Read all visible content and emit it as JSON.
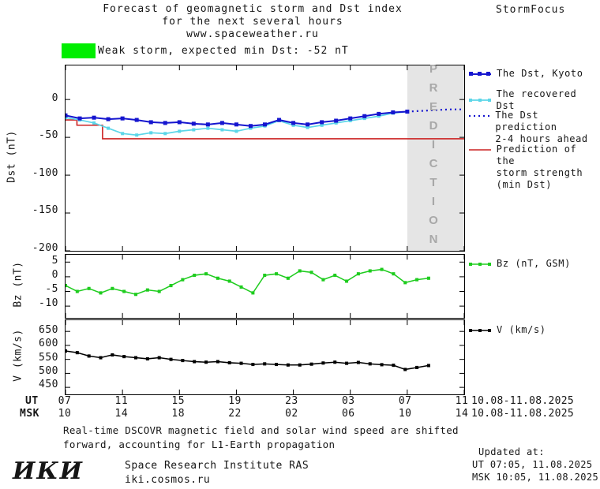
{
  "header": {
    "title_line1": "Forecast of geomagnetic storm and Dst index",
    "title_line2": "for the next several hours",
    "title_line3": "www.spaceweather.ru",
    "brand": "StormFocus"
  },
  "banner": {
    "text": "Weak storm, expected min Dst: -52 nT"
  },
  "prediction_region": {
    "label": "PREDICTION"
  },
  "legend": {
    "dst_kyoto": "The Dst, Kyoto",
    "recovered": "The recovered Dst",
    "prediction_line1": "The Dst prediction",
    "prediction_line2": "2-4 hours ahead",
    "strength_line1": "Prediction of the",
    "strength_line2": "storm strength",
    "strength_line3": "(min Dst)",
    "bz": "Bz (nT, GSM)",
    "v": "V (km/s)"
  },
  "axes": {
    "dst_label": "Dst (nT)",
    "bz_label": "Bz (nT)",
    "v_label": "V (km/s)",
    "ut_label": "UT",
    "msk_label": "MSK",
    "tick_hours": [
      0,
      4,
      8,
      12,
      16,
      20,
      24,
      28
    ],
    "ut_ticks": [
      "07",
      "11",
      "15",
      "19",
      "23",
      "03",
      "07",
      "11"
    ],
    "msk_ticks": [
      "10",
      "14",
      "18",
      "22",
      "02",
      "06",
      "10",
      "14"
    ],
    "ut_date": "10.08-11.08.2025",
    "msk_date": "10.08-11.08.2025"
  },
  "footer": {
    "note_line1": "Real-time DSCOVR magnetic field and solar wind speed are shifted",
    "note_line2": "forward, accounting for L1-Earth propagation",
    "updated_label": "Updated at:",
    "updated_ut": "UT  07:05, 11.08.2025",
    "updated_msk": "MSK 10:05, 11.08.2025",
    "logo": "ИКИ",
    "institute": "Space Research Institute RAS",
    "site": "iki.cosmos.ru"
  },
  "colors": {
    "kyoto": "#1515cf",
    "recovered": "#5cd6e8",
    "prediction": "#1515cf",
    "strength": "#cc2222",
    "bz": "#1ecc1e",
    "v": "#000000",
    "banner": "#00ee00",
    "region_fill": "#e5e5e5",
    "region_text": "#a8a8a8"
  },
  "chart_data": [
    {
      "id": "dst",
      "type": "line",
      "title": "Dst index, recovered Dst and prediction",
      "ylabel": "Dst (nT)",
      "ytop": 45,
      "ybottom": -200,
      "xlim": [
        0,
        28
      ],
      "ytick_values": [
        0,
        -50,
        -100,
        -150,
        -200
      ],
      "xtick_values": [
        0,
        4,
        8,
        12,
        16,
        20,
        24,
        28
      ],
      "prediction_region": [
        24,
        28
      ],
      "legend_position": "right",
      "series": [
        {
          "name": "Prediction of the storm strength (min Dst)",
          "color": "#cc2222",
          "width": 1.6,
          "x": [
            0,
            0.8,
            0.8,
            2.6,
            2.6,
            28
          ],
          "values": [
            -27,
            -27,
            -34,
            -34,
            -52,
            -52
          ]
        },
        {
          "name": "The recovered Dst",
          "color": "#5cd6e8",
          "width": 1.7,
          "marker": "square",
          "marker_size": 4,
          "x_range": [
            0,
            24
          ],
          "values": [
            -24,
            -27,
            -31,
            -38,
            -45,
            -47,
            -44,
            -45,
            -42,
            -40,
            -38,
            -40,
            -42,
            -38,
            -35,
            -28,
            -34,
            -37,
            -34,
            -31,
            -28,
            -25,
            -22,
            -18,
            -16
          ]
        },
        {
          "name": "The Dst, Kyoto",
          "color": "#1515cf",
          "width": 2,
          "marker": "square",
          "marker_size": 5,
          "x_range": [
            0,
            24
          ],
          "values": [
            -21,
            -25,
            -24,
            -26,
            -25,
            -27,
            -30,
            -31,
            -30,
            -32,
            -33,
            -31,
            -33,
            -35,
            -33,
            -27,
            -31,
            -33,
            -30,
            -28,
            -25,
            -22,
            -19,
            -17,
            -16
          ]
        },
        {
          "name": "The Dst prediction 2-4 hours ahead",
          "color": "#1515cf",
          "width": 2.2,
          "style": "dotted",
          "x_range": [
            24,
            28
          ],
          "values": [
            -16,
            -15,
            -14,
            -13,
            -13
          ]
        }
      ]
    },
    {
      "id": "bz",
      "type": "line",
      "title": "Bz (nT, GSM)",
      "ylabel": "Bz (nT)",
      "ytop": 7.5,
      "ybottom": -14,
      "xlim": [
        0,
        28
      ],
      "ytick_values": [
        5,
        0,
        -5,
        -10
      ],
      "xtick_values": [
        0,
        4,
        8,
        12,
        16,
        20,
        24,
        28
      ],
      "series": [
        {
          "name": "Bz (nT, GSM)",
          "color": "#1ecc1e",
          "width": 1.5,
          "marker": "square",
          "marker_size": 4,
          "x_range": [
            0,
            25.5
          ],
          "values": [
            -3,
            -5,
            -4,
            -5.5,
            -4,
            -5,
            -6,
            -4.5,
            -5,
            -3,
            -1,
            0.5,
            1,
            -0.5,
            -1.5,
            -3.5,
            -5.5,
            0.5,
            1,
            -0.5,
            2,
            1.5,
            -1,
            0.5,
            -1.5,
            1,
            2,
            2.5,
            1,
            -2,
            -1,
            -0.5
          ]
        }
      ]
    },
    {
      "id": "v",
      "type": "line",
      "title": "Solar wind speed V (km/s)",
      "ylabel": "V (km/s)",
      "ytop": 690,
      "ybottom": 425,
      "xlim": [
        0,
        28
      ],
      "ytick_values": [
        650,
        600,
        550,
        500,
        450
      ],
      "xtick_values": [
        0,
        4,
        8,
        12,
        16,
        20,
        24,
        28
      ],
      "series": [
        {
          "name": "V (km/s)",
          "color": "#000000",
          "width": 1.5,
          "marker": "square",
          "marker_size": 4,
          "x_range": [
            0,
            25.5
          ],
          "values": [
            580,
            574,
            562,
            556,
            566,
            560,
            556,
            552,
            556,
            550,
            546,
            542,
            540,
            542,
            538,
            536,
            532,
            534,
            532,
            530,
            530,
            533,
            537,
            540,
            536,
            539,
            534,
            531,
            529,
            514,
            521,
            528
          ]
        }
      ]
    }
  ]
}
